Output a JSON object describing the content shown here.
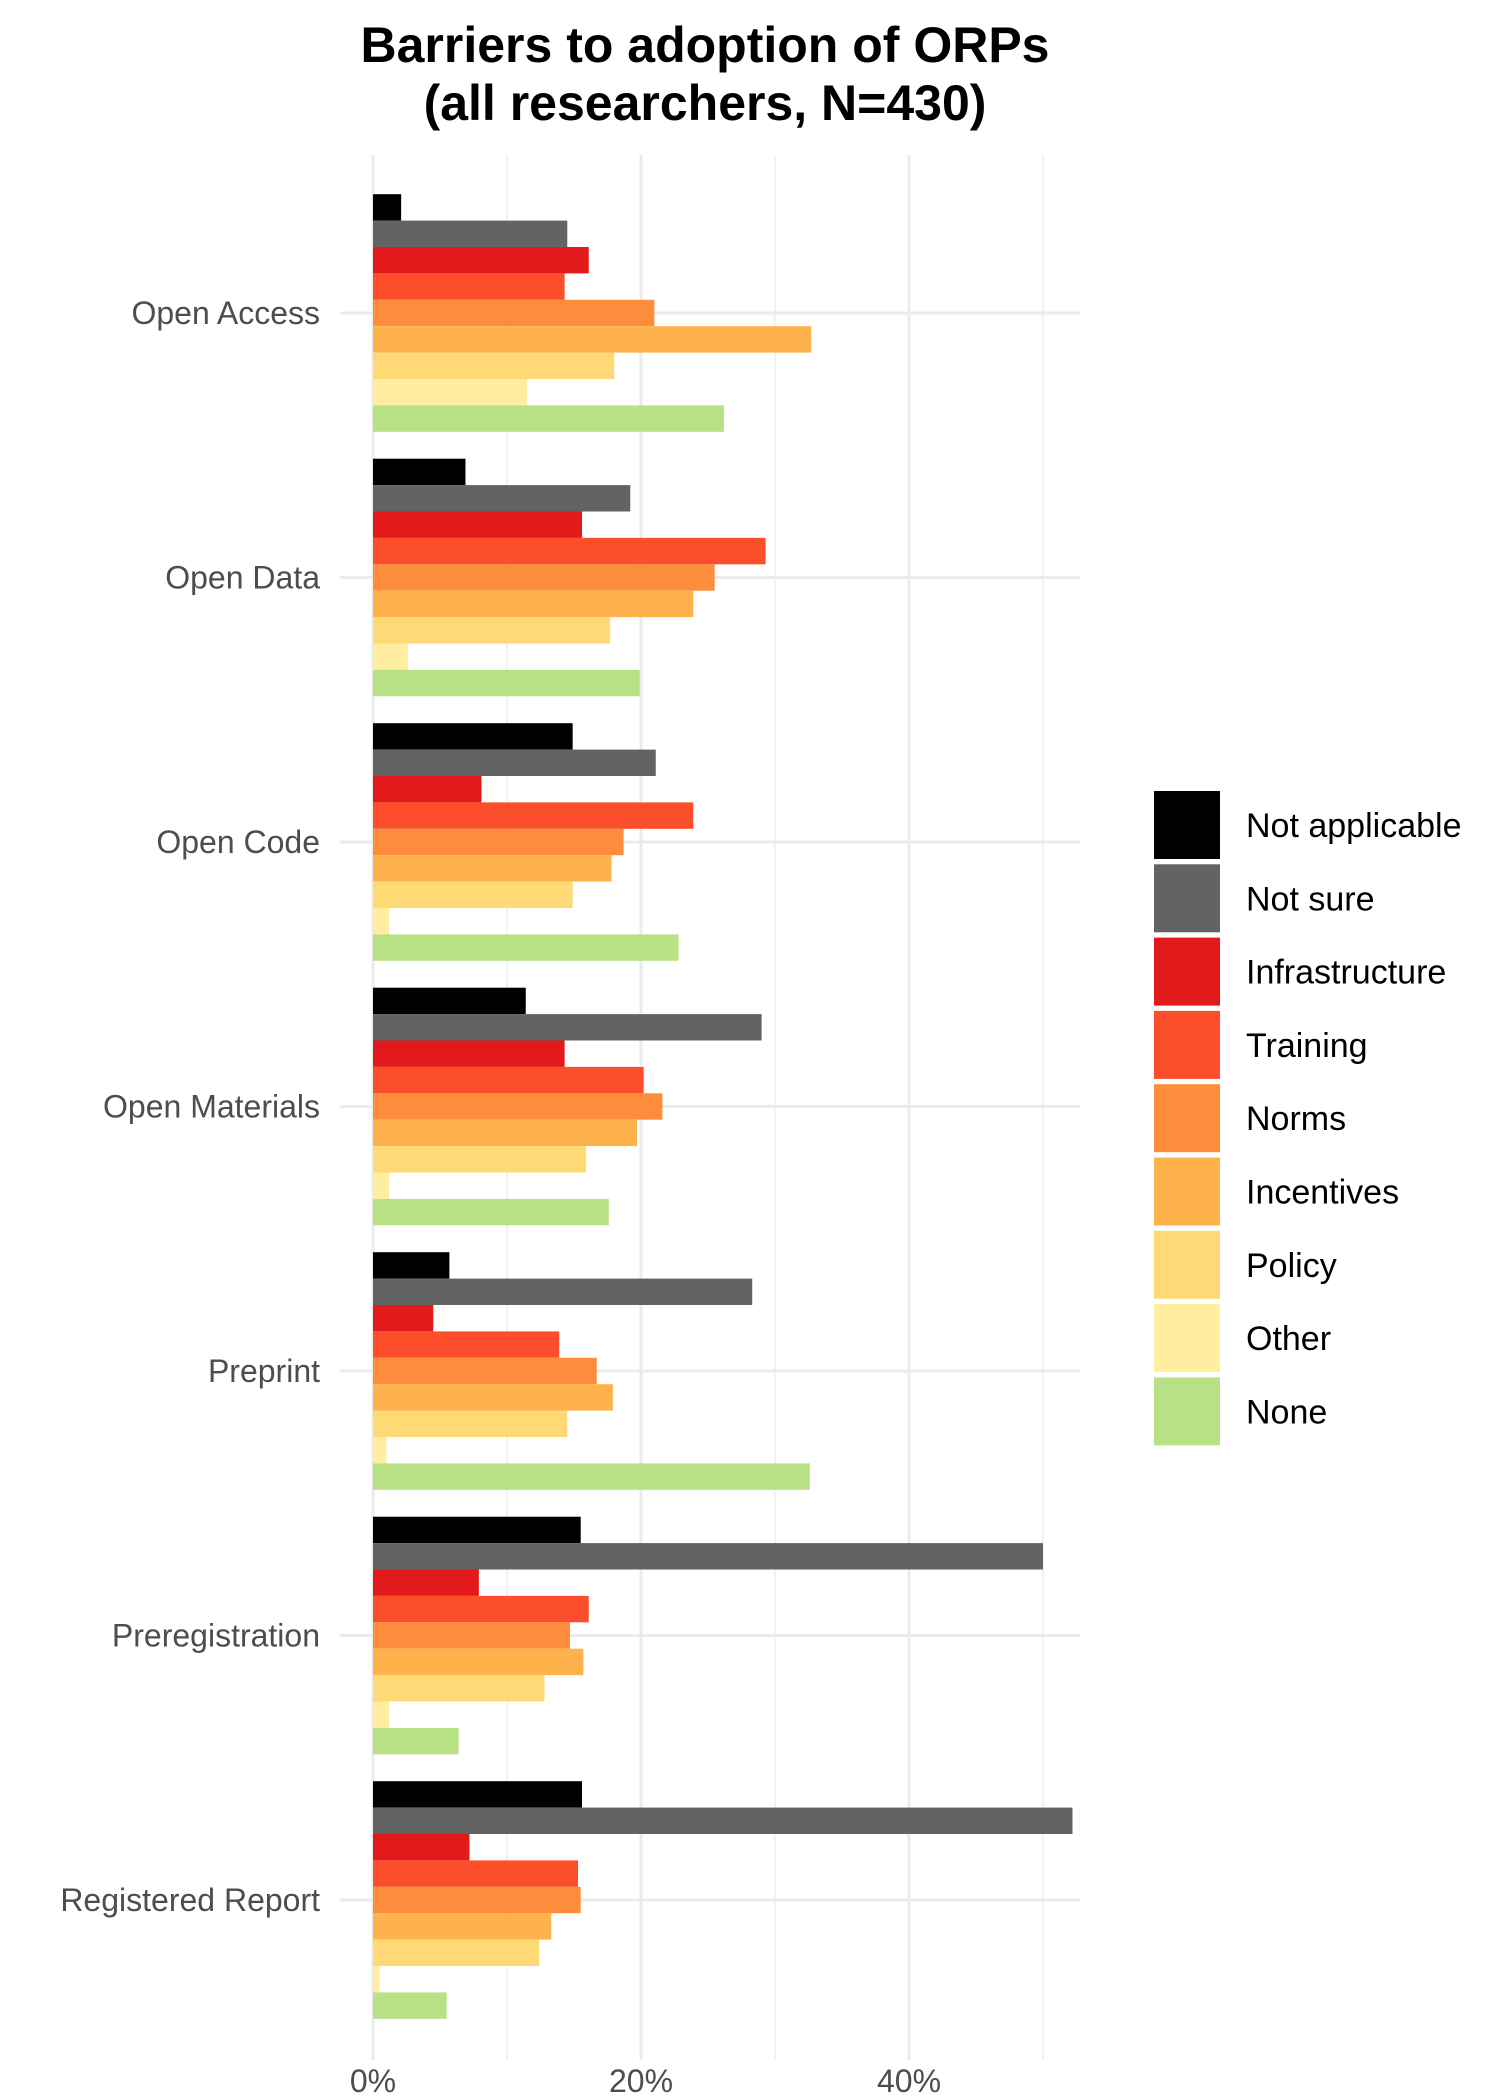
{
  "chart_data": {
    "type": "bar",
    "orientation": "horizontal",
    "title": "Barriers to adoption of ORPs",
    "subtitle": "(all researchers, N=430)",
    "xlabel": "",
    "ylabel": "",
    "xlim": [
      0,
      52
    ],
    "x_ticks": [
      0,
      20,
      40
    ],
    "x_tick_labels": [
      "0%",
      "20%",
      "40%"
    ],
    "grid": true,
    "legend_position": "right",
    "categories": [
      "Open Access",
      "Open Data",
      "Open Code",
      "Open Materials",
      "Preprint",
      "Preregistration",
      "Registered Report"
    ],
    "series": [
      {
        "name": "Not applicable",
        "color": "#000000",
        "values": [
          2.1,
          6.9,
          14.9,
          11.4,
          5.7,
          15.5,
          15.6
        ]
      },
      {
        "name": "Not sure",
        "color": "#636363",
        "values": [
          14.5,
          19.2,
          21.1,
          29.0,
          28.3,
          50.0,
          52.2
        ]
      },
      {
        "name": "Infrastructure",
        "color": "#e31a1c",
        "values": [
          16.1,
          15.6,
          8.1,
          14.3,
          4.5,
          7.9,
          7.2
        ]
      },
      {
        "name": "Training",
        "color": "#fc4e2a",
        "values": [
          14.3,
          29.3,
          23.9,
          20.2,
          13.9,
          16.1,
          15.3
        ]
      },
      {
        "name": "Norms",
        "color": "#fd8d3c",
        "values": [
          21.0,
          25.5,
          18.7,
          21.6,
          16.7,
          14.7,
          15.5
        ]
      },
      {
        "name": "Incentives",
        "color": "#feb24c",
        "values": [
          32.7,
          23.9,
          17.8,
          19.7,
          17.9,
          15.7,
          13.3
        ]
      },
      {
        "name": "Policy",
        "color": "#fed976",
        "values": [
          18.0,
          17.7,
          14.9,
          15.9,
          14.5,
          12.8,
          12.4
        ]
      },
      {
        "name": "Other",
        "color": "#ffeda0",
        "values": [
          11.5,
          2.6,
          1.2,
          1.2,
          1.0,
          1.2,
          0.5
        ]
      },
      {
        "name": "None",
        "color": "#b8e186",
        "values": [
          26.2,
          19.9,
          22.8,
          17.6,
          32.6,
          6.4,
          5.5
        ]
      }
    ]
  }
}
